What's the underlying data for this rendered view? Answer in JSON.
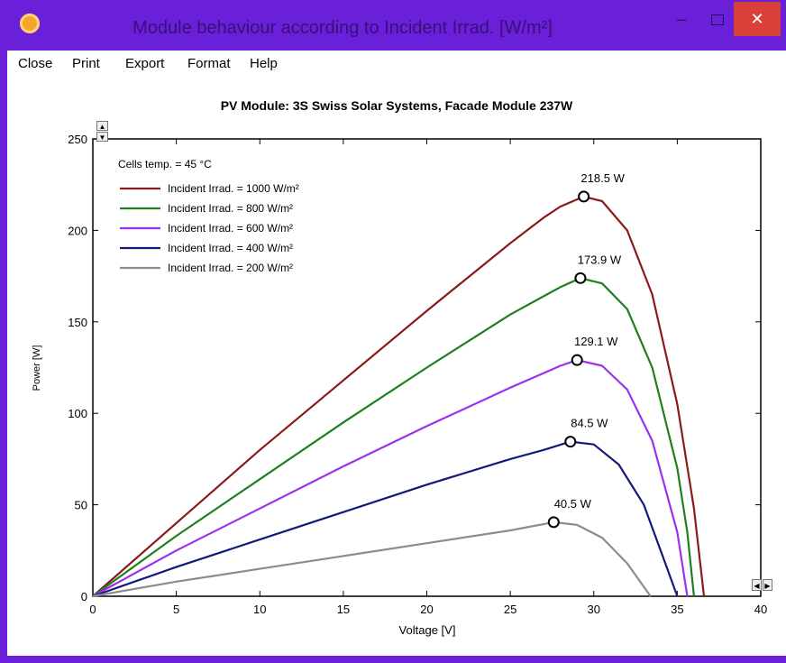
{
  "window": {
    "title": "Module behaviour according to Incident Irrad. [W/m²]",
    "min_label": "–",
    "close_label": "✕"
  },
  "menu": [
    "Close",
    "Print",
    "Export",
    "Format",
    "Help"
  ],
  "chart_data": {
    "type": "line",
    "title": "PV Module: 3S Swiss Solar Systems, Facade Module 237W",
    "xlabel": "Voltage [V]",
    "ylabel": "Power [W]",
    "xlim": [
      0,
      40
    ],
    "ylim": [
      0,
      250
    ],
    "xticks": [
      0,
      5,
      10,
      15,
      20,
      25,
      30,
      35,
      40
    ],
    "yticks": [
      0,
      50,
      100,
      150,
      200,
      250
    ],
    "annotation": "Cells temp. = 45 °C",
    "legend_position": "top-left",
    "series": [
      {
        "name": "Incident Irrad. = 1000 W/m²",
        "color": "#8b1a1a",
        "mpp": [
          29.4,
          218.5
        ],
        "mpp_label": "218.5 W",
        "voc": 36.6,
        "x": [
          0,
          5,
          10,
          15,
          20,
          25,
          27,
          28,
          29.4,
          30.5,
          32,
          33.5,
          35,
          36,
          36.6
        ],
        "y": [
          0,
          40,
          80,
          118,
          156,
          193,
          207,
          213,
          218.5,
          216,
          200,
          165,
          105,
          48,
          0
        ]
      },
      {
        "name": "Incident Irrad. = 800 W/m²",
        "color": "#1f7f1f",
        "mpp": [
          29.2,
          173.9
        ],
        "mpp_label": "173.9 W",
        "voc": 36.0,
        "x": [
          0,
          5,
          10,
          15,
          20,
          25,
          27,
          28,
          29.2,
          30.5,
          32,
          33.5,
          35,
          35.6,
          36.0
        ],
        "y": [
          0,
          33,
          64,
          95,
          125,
          154,
          164,
          169,
          173.9,
          171,
          157,
          125,
          70,
          35,
          0
        ]
      },
      {
        "name": "Incident Irrad. = 600 W/m²",
        "color": "#9b30f0",
        "mpp": [
          29.0,
          129.1
        ],
        "mpp_label": "129.1 W",
        "voc": 35.6,
        "x": [
          0,
          5,
          10,
          15,
          20,
          25,
          27,
          28,
          29.0,
          30.5,
          32,
          33.5,
          35,
          35.6
        ],
        "y": [
          0,
          25,
          48,
          71,
          93,
          114,
          122,
          126,
          129.1,
          126,
          113,
          85,
          35,
          0
        ]
      },
      {
        "name": "Incident Irrad. = 400 W/m²",
        "color": "#141a7a",
        "mpp": [
          28.6,
          84.5
        ],
        "mpp_label": "84.5 W",
        "voc": 35.0,
        "x": [
          0,
          5,
          10,
          15,
          20,
          25,
          27,
          28.6,
          30,
          31.5,
          33,
          34.2,
          35.0
        ],
        "y": [
          0,
          16,
          31,
          46,
          61,
          75,
          80,
          84.5,
          83,
          72,
          50,
          20,
          0
        ]
      },
      {
        "name": "Incident Irrad. = 200 W/m²",
        "color": "#8c8c8c",
        "mpp": [
          27.6,
          40.5
        ],
        "mpp_label": "40.5 W",
        "voc": 33.4,
        "x": [
          0,
          5,
          10,
          15,
          20,
          25,
          27.6,
          29,
          30.5,
          32,
          33.4
        ],
        "y": [
          0,
          8,
          15,
          22,
          29,
          36,
          40.5,
          39,
          32,
          18,
          0
        ]
      }
    ]
  }
}
